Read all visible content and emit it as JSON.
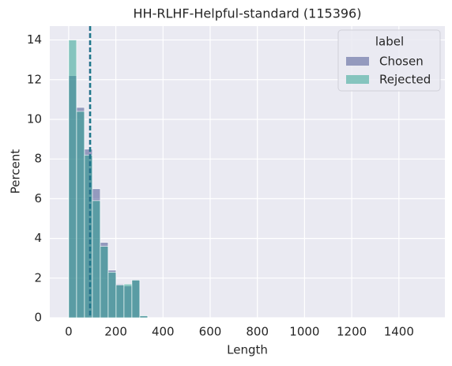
{
  "chart_data": {
    "type": "histogram",
    "title": "HH-RLHF-Helpful-standard (115396)",
    "x_label": "Length",
    "y_label": "Percent",
    "bins": [
      0,
      33.5,
      67,
      100.5,
      134,
      167.5,
      201,
      234.5,
      268,
      301.5,
      335
    ],
    "series": [
      {
        "name": "Chosen",
        "color": "#3e4a89",
        "values": [
          12.2,
          10.6,
          8.5,
          6.5,
          3.8,
          2.4,
          1.7,
          1.6,
          1.9,
          0.1
        ]
      },
      {
        "name": "Rejected",
        "color": "#1f9e89",
        "values": [
          14.0,
          10.4,
          8.2,
          5.9,
          3.6,
          2.3,
          1.65,
          1.7,
          1.9,
          0.1
        ]
      }
    ],
    "mean_lines": [
      {
        "value": 90,
        "color": "#2a5f86"
      },
      {
        "value": 92,
        "color": "#1f7a8c"
      }
    ],
    "xlim": [
      -80,
      1595
    ],
    "ylim": [
      0,
      14.7
    ],
    "xticks": [
      0,
      200,
      400,
      600,
      800,
      1000,
      1200,
      1400
    ],
    "yticks": [
      0,
      2,
      4,
      6,
      8,
      10,
      12,
      14
    ],
    "grid": true,
    "legend_title": "label",
    "legend_position": "upper right"
  }
}
